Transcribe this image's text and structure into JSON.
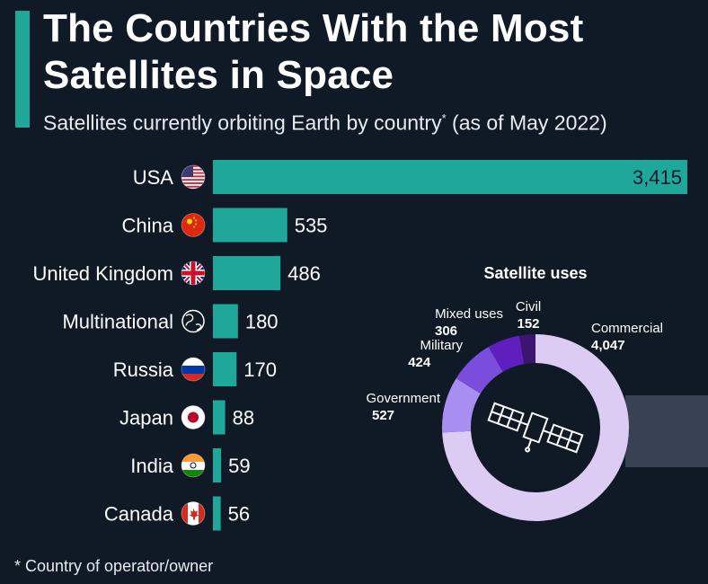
{
  "header": {
    "title": "The Countries With the Most Satellites in Space",
    "subtitle_main": "Satellites currently orbiting Earth by country",
    "subtitle_star": "*",
    "subtitle_tail": " (as of May 2022)"
  },
  "footnote": "* Country of operator/owner",
  "colors": {
    "accent": "#1fa89a",
    "bar": "#1fa89a",
    "background": "#0f1a26"
  },
  "chart_data": [
    {
      "type": "bar",
      "orientation": "horizontal",
      "categories": [
        "USA",
        "China",
        "United Kingdom",
        "Multinational",
        "Russia",
        "Japan",
        "India",
        "Canada"
      ],
      "values": [
        3415,
        535,
        486,
        180,
        170,
        88,
        59,
        56
      ],
      "value_labels": [
        "3,415",
        "535",
        "486",
        "180",
        "170",
        "88",
        "59",
        "56"
      ],
      "icons": [
        "usa-flag-icon",
        "china-flag-icon",
        "uk-flag-icon",
        "globe-icon",
        "russia-flag-icon",
        "japan-flag-icon",
        "india-flag-icon",
        "canada-flag-icon"
      ],
      "xlim": [
        0,
        3415
      ]
    },
    {
      "type": "pie",
      "style": "donut",
      "title": "Satellite uses",
      "labels": [
        "Commercial",
        "Government",
        "Military",
        "Mixed uses",
        "Civil"
      ],
      "values": [
        4047,
        527,
        424,
        306,
        152
      ],
      "value_labels": [
        "4,047",
        "527",
        "424",
        "306",
        "152"
      ],
      "colors": [
        "#dccbf3",
        "#a98ef2",
        "#7a4ddc",
        "#5f1fbf",
        "#3d1470"
      ],
      "center_icon": "satellite-icon"
    }
  ]
}
